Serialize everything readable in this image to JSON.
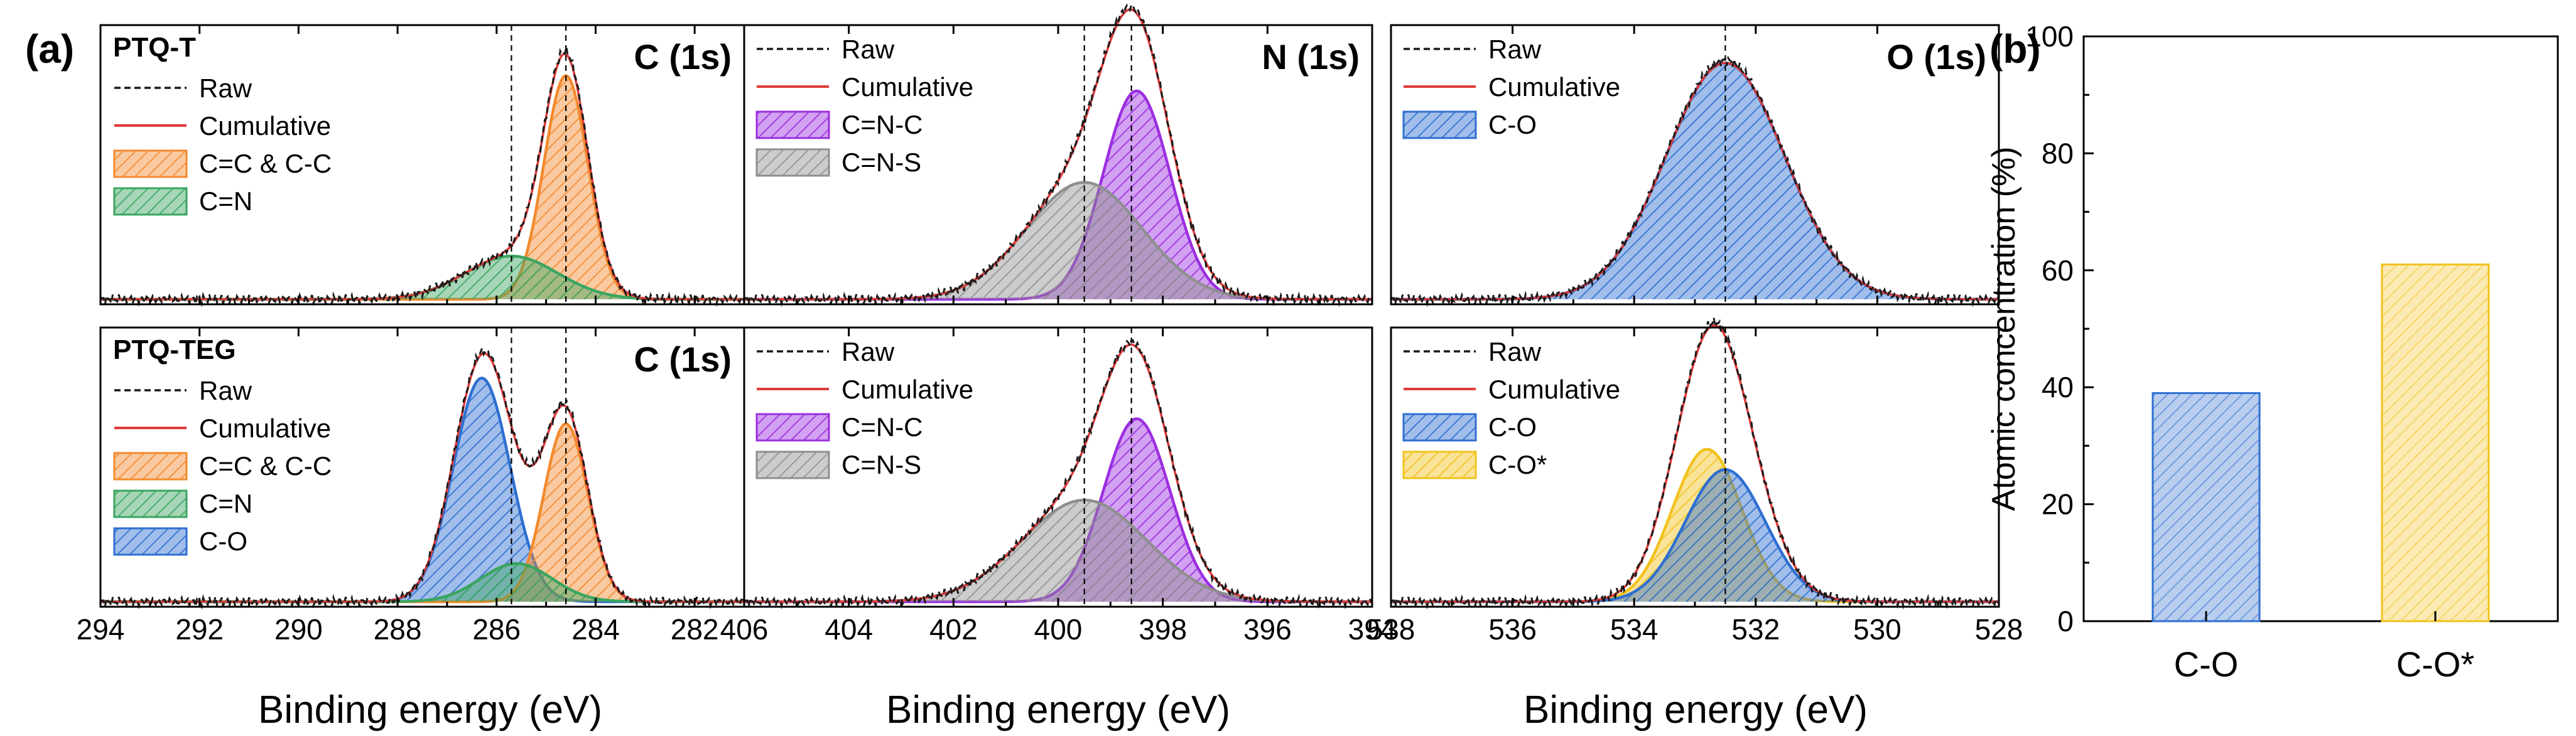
{
  "figure": {
    "panel_a_label": "(a)",
    "panel_b_label": "(b)",
    "xlabel": "Binding energy (eV)",
    "samples": [
      "PTQ-T",
      "PTQ-TEG"
    ],
    "colors": {
      "raw": "#1a1a1a",
      "cumulative": "#e03a3a",
      "orange": "#f28a2e",
      "green": "#3aa560",
      "blue": "#2e6fd0",
      "purple": "#9b2ee0",
      "gray": "#8f8f8f",
      "yellow": "#f2c21d"
    }
  },
  "chart_data": [
    {
      "type": "line",
      "title": "C (1s)",
      "sample": "PTQ-T",
      "xlabel": "Binding energy (eV)",
      "xlim": [
        294,
        281
      ],
      "xticks": [
        294,
        292,
        290,
        288,
        286,
        284,
        282
      ],
      "guides": [
        285.7,
        284.6
      ],
      "legend": [
        "Raw",
        "Cumulative",
        "C=C & C-C",
        "C=N"
      ],
      "components": [
        {
          "name": "C=C & C-C",
          "color": "orange",
          "center": 284.6,
          "fwhm": 1.05,
          "height": 0.88
        },
        {
          "name": "C=N",
          "color": "green",
          "center": 285.7,
          "fwhm": 2.2,
          "height": 0.17
        }
      ]
    },
    {
      "type": "line",
      "title": "C (1s)",
      "sample": "PTQ-TEG",
      "xlabel": "Binding energy (eV)",
      "xlim": [
        294,
        281
      ],
      "xticks": [
        294,
        292,
        290,
        288,
        286,
        284,
        282
      ],
      "guides": [
        285.7,
        284.6
      ],
      "legend": [
        "Raw",
        "Cumulative",
        "C=C & C-C",
        "C=N",
        "C-O"
      ],
      "components": [
        {
          "name": "C-O",
          "color": "blue",
          "center": 286.3,
          "fwhm": 1.35,
          "height": 0.88
        },
        {
          "name": "C=C & C-C",
          "color": "orange",
          "center": 284.6,
          "fwhm": 1.05,
          "height": 0.7
        },
        {
          "name": "C=N",
          "color": "green",
          "center": 285.6,
          "fwhm": 1.7,
          "height": 0.15
        }
      ]
    },
    {
      "type": "line",
      "title": "N (1s)",
      "sample": "PTQ-T",
      "xlabel": "Binding energy (eV)",
      "xlim": [
        406,
        394
      ],
      "xticks": [
        406,
        404,
        402,
        400,
        398,
        396,
        394
      ],
      "guides": [
        399.5,
        398.6
      ],
      "legend": [
        "Raw",
        "Cumulative",
        "C=N-C",
        "C=N-S"
      ],
      "components": [
        {
          "name": "C=N-C",
          "color": "purple",
          "center": 398.5,
          "fwhm": 1.5,
          "height": 0.82
        },
        {
          "name": "C=N-S",
          "color": "gray",
          "center": 399.5,
          "fwhm": 2.6,
          "height": 0.46
        }
      ]
    },
    {
      "type": "line",
      "title": "",
      "sample": "PTQ-TEG",
      "xlabel": "Binding energy (eV)",
      "xlim": [
        406,
        394
      ],
      "xticks": [
        406,
        404,
        402,
        400,
        398,
        396,
        394
      ],
      "guides": [
        399.5,
        398.6
      ],
      "legend": [
        "Raw",
        "Cumulative",
        "C=N-C",
        "C=N-S"
      ],
      "components": [
        {
          "name": "C=N-C",
          "color": "purple",
          "center": 398.5,
          "fwhm": 1.5,
          "height": 0.72
        },
        {
          "name": "C=N-S",
          "color": "gray",
          "center": 399.5,
          "fwhm": 2.8,
          "height": 0.4
        }
      ]
    },
    {
      "type": "line",
      "title": "O (1s)",
      "sample": "PTQ-T",
      "xlabel": "Binding energy (eV)",
      "xlim": [
        538,
        528
      ],
      "xticks": [
        538,
        536,
        534,
        532,
        530,
        528
      ],
      "guides": [
        532.5
      ],
      "legend": [
        "Raw",
        "Cumulative",
        "C-O"
      ],
      "components": [
        {
          "name": "C-O",
          "color": "blue",
          "center": 532.5,
          "fwhm": 2.3,
          "height": 0.93
        }
      ]
    },
    {
      "type": "line",
      "title": "",
      "sample": "PTQ-TEG",
      "xlabel": "Binding energy (eV)",
      "xlim": [
        538,
        528
      ],
      "xticks": [
        538,
        536,
        534,
        532,
        530,
        528
      ],
      "guides": [
        532.5
      ],
      "legend": [
        "Raw",
        "Cumulative",
        "C-O",
        "C-O*"
      ],
      "components": [
        {
          "name": "C-O",
          "color": "blue",
          "center": 532.5,
          "fwhm": 1.55,
          "height": 0.52
        },
        {
          "name": "C-O*",
          "color": "yellow",
          "center": 532.8,
          "fwhm": 1.35,
          "height": 0.6
        }
      ]
    },
    {
      "type": "bar",
      "categories": [
        "C-O",
        "C-O*"
      ],
      "values": [
        39,
        61
      ],
      "colors": [
        "blue",
        "yellow"
      ],
      "ylabel": "Atomic concentration (%)",
      "ylim": [
        0,
        100
      ],
      "yticks": [
        0,
        20,
        40,
        60,
        80,
        100
      ]
    }
  ]
}
